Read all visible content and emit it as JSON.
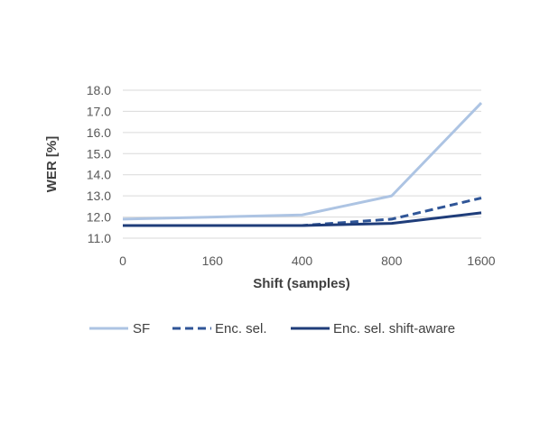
{
  "chart_data": {
    "type": "line",
    "title": "",
    "xlabel": "Shift (samples)",
    "ylabel": "WER [%]",
    "categories": [
      "0",
      "160",
      "400",
      "800",
      "1600"
    ],
    "ylim": [
      11.0,
      18.0
    ],
    "yticks": [
      "11.0",
      "12.0",
      "13.0",
      "14.0",
      "15.0",
      "16.0",
      "17.0",
      "18.0"
    ],
    "grid": true,
    "legend_position": "bottom",
    "series": [
      {
        "name": "SF",
        "values": [
          11.9,
          12.0,
          12.1,
          13.0,
          17.4
        ],
        "color": "#adc4e3",
        "dash": "solid"
      },
      {
        "name": "Enc. sel.",
        "values": [
          11.6,
          11.6,
          11.6,
          11.9,
          12.9
        ],
        "color": "#2f5597",
        "dash": "dashed"
      },
      {
        "name": "Enc. sel. shift-aware",
        "values": [
          11.6,
          11.6,
          11.6,
          11.7,
          12.2
        ],
        "color": "#1f3d7a",
        "dash": "solid"
      }
    ]
  }
}
